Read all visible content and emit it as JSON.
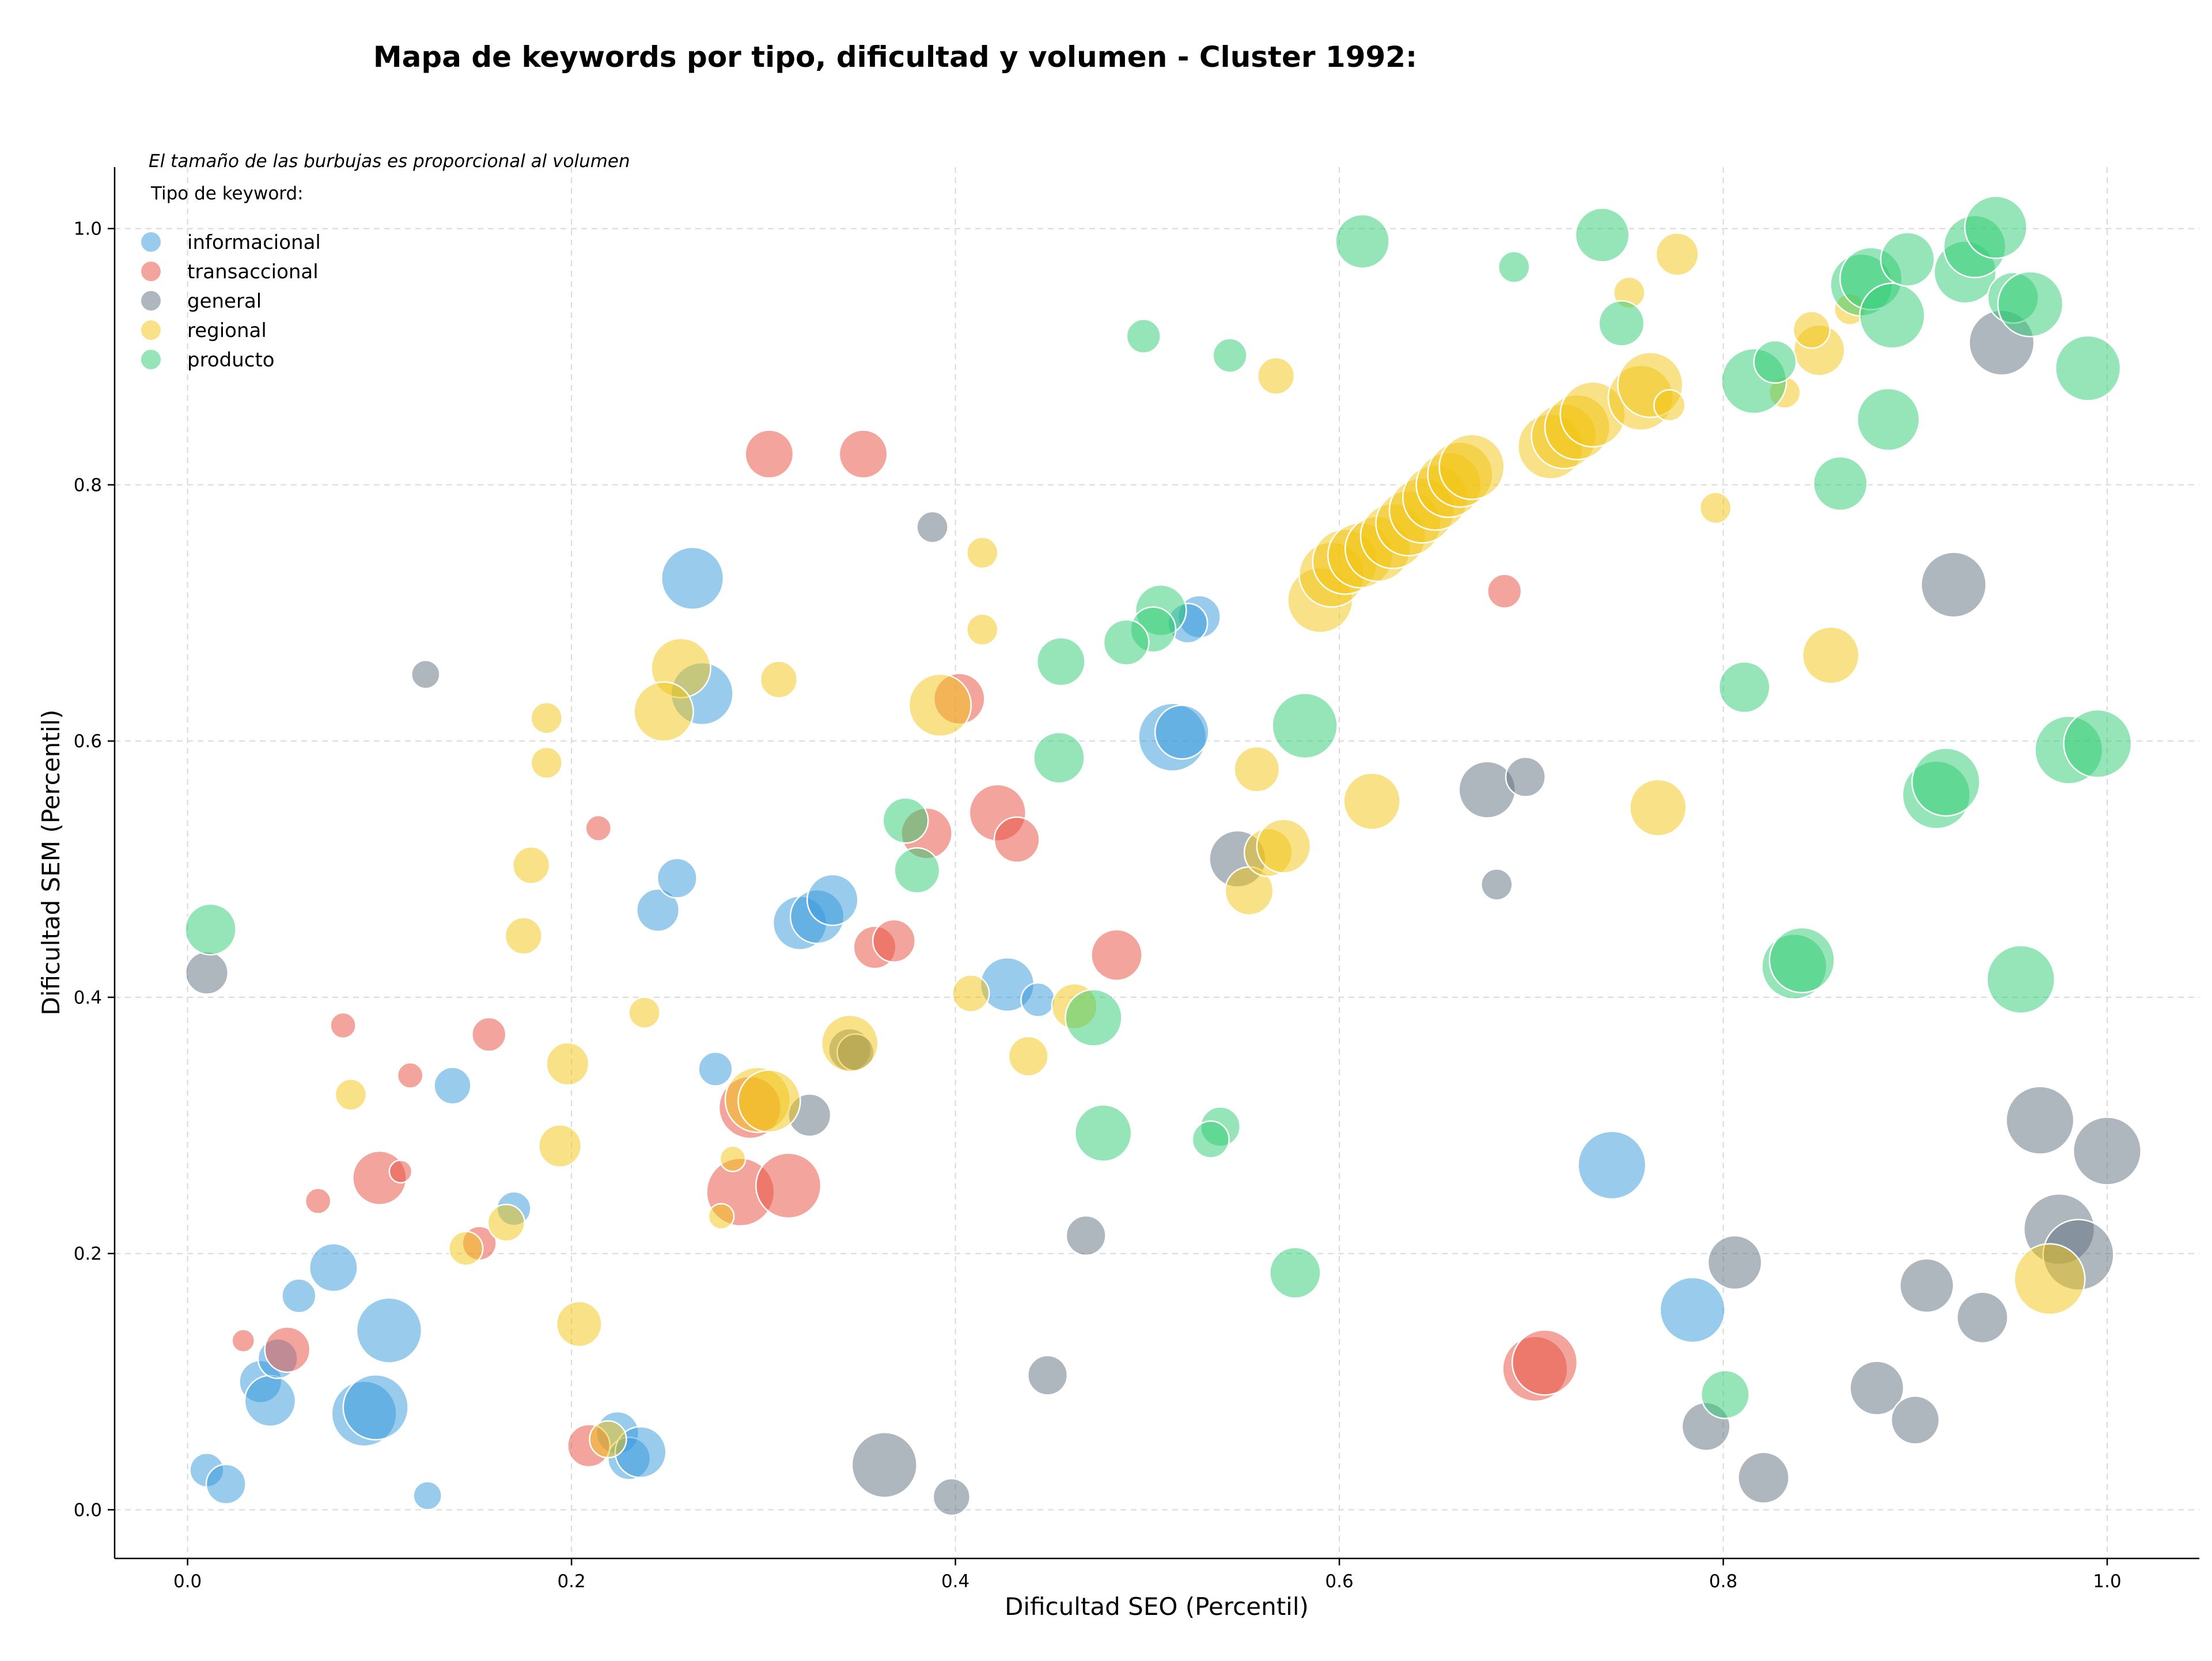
{
  "chart_data": {
    "type": "scatter",
    "title": "Mapa de keywords por tipo, dificultad y volumen - Cluster 1992:",
    "xlabel": "Dificultad SEO (Percentil)",
    "ylabel": "Dificultad SEM (Percentil)",
    "xlim": [
      -0.038,
      1.048
    ],
    "ylim": [
      -0.038,
      1.048
    ],
    "xticks": [
      "0.0",
      "0.2",
      "0.4",
      "0.6",
      "0.8",
      "1.0"
    ],
    "yticks": [
      "0.0",
      "0.2",
      "0.4",
      "0.6",
      "0.8",
      "1.0"
    ],
    "xtick_values": [
      0.0,
      0.2,
      0.4,
      0.6,
      0.8,
      1.0
    ],
    "ytick_values": [
      0.0,
      0.2,
      0.4,
      0.6,
      0.8,
      1.0
    ],
    "grid": true,
    "legend_position": "top-left",
    "legend_note": "El tamaño de las burbujas es proporcional al volumen",
    "legend_title": "Tipo de keyword:",
    "series": [
      {
        "name": "informacional",
        "color": "#3498db",
        "points": [
          [
            0.263,
            0.727,
            44
          ],
          [
            0.268,
            0.637,
            44
          ],
          [
            0.513,
            0.603,
            48
          ],
          [
            0.518,
            0.607,
            38
          ],
          [
            0.527,
            0.697,
            30
          ],
          [
            0.521,
            0.692,
            28
          ],
          [
            0.427,
            0.41,
            38
          ],
          [
            0.443,
            0.398,
            24
          ],
          [
            0.319,
            0.458,
            38
          ],
          [
            0.328,
            0.463,
            38
          ],
          [
            0.336,
            0.476,
            36
          ],
          [
            0.245,
            0.468,
            30
          ],
          [
            0.255,
            0.493,
            28
          ],
          [
            0.275,
            0.344,
            24
          ],
          [
            0.138,
            0.331,
            26
          ],
          [
            0.17,
            0.235,
            24
          ],
          [
            0.076,
            0.189,
            34
          ],
          [
            0.058,
            0.167,
            24
          ],
          [
            0.105,
            0.14,
            46
          ],
          [
            0.038,
            0.1,
            30
          ],
          [
            0.043,
            0.085,
            36
          ],
          [
            0.047,
            0.118,
            28
          ],
          [
            0.092,
            0.075,
            46
          ],
          [
            0.098,
            0.08,
            46
          ],
          [
            0.01,
            0.031,
            24
          ],
          [
            0.02,
            0.02,
            28
          ],
          [
            0.125,
            0.011,
            20
          ],
          [
            0.224,
            0.06,
            30
          ],
          [
            0.23,
            0.04,
            30
          ],
          [
            0.236,
            0.045,
            36
          ],
          [
            0.742,
            0.269,
            48
          ],
          [
            0.784,
            0.156,
            46
          ]
        ]
      },
      {
        "name": "transaccional",
        "color": "#e74c3c",
        "points": [
          [
            0.303,
            0.824,
            34
          ],
          [
            0.352,
            0.824,
            34
          ],
          [
            0.686,
            0.717,
            24
          ],
          [
            0.402,
            0.633,
            36
          ],
          [
            0.422,
            0.544,
            40
          ],
          [
            0.432,
            0.523,
            32
          ],
          [
            0.385,
            0.528,
            36
          ],
          [
            0.358,
            0.439,
            30
          ],
          [
            0.368,
            0.444,
            30
          ],
          [
            0.484,
            0.433,
            36
          ],
          [
            0.214,
            0.532,
            18
          ],
          [
            0.081,
            0.378,
            18
          ],
          [
            0.157,
            0.371,
            24
          ],
          [
            0.116,
            0.339,
            18
          ],
          [
            0.1,
            0.259,
            38
          ],
          [
            0.111,
            0.264,
            16
          ],
          [
            0.068,
            0.241,
            18
          ],
          [
            0.152,
            0.208,
            24
          ],
          [
            0.293,
            0.314,
            44
          ],
          [
            0.288,
            0.248,
            48
          ],
          [
            0.313,
            0.253,
            46
          ],
          [
            0.029,
            0.132,
            16
          ],
          [
            0.052,
            0.125,
            32
          ],
          [
            0.209,
            0.05,
            30
          ],
          [
            0.702,
            0.11,
            46
          ],
          [
            0.707,
            0.115,
            46
          ]
        ]
      },
      {
        "name": "general",
        "color": "#5d6d7e",
        "points": [
          [
            0.388,
            0.767,
            22
          ],
          [
            0.124,
            0.652,
            20
          ],
          [
            0.01,
            0.419,
            30
          ],
          [
            0.345,
            0.359,
            30
          ],
          [
            0.348,
            0.357,
            26
          ],
          [
            0.324,
            0.308,
            30
          ],
          [
            0.547,
            0.508,
            40
          ],
          [
            0.677,
            0.562,
            40
          ],
          [
            0.697,
            0.572,
            28
          ],
          [
            0.682,
            0.488,
            22
          ],
          [
            0.468,
            0.214,
            28
          ],
          [
            0.448,
            0.105,
            28
          ],
          [
            0.363,
            0.035,
            46
          ],
          [
            0.398,
            0.01,
            26
          ],
          [
            0.92,
            0.722,
            46
          ],
          [
            0.945,
            0.911,
            46
          ],
          [
            0.806,
            0.193,
            38
          ],
          [
            0.791,
            0.065,
            34
          ],
          [
            0.821,
            0.025,
            36
          ],
          [
            0.88,
            0.095,
            38
          ],
          [
            0.9,
            0.07,
            34
          ],
          [
            0.906,
            0.175,
            38
          ],
          [
            0.935,
            0.15,
            36
          ],
          [
            0.965,
            0.304,
            48
          ],
          [
            0.975,
            0.219,
            50
          ],
          [
            0.985,
            0.199,
            50
          ],
          [
            1.0,
            0.28,
            48
          ]
        ]
      },
      {
        "name": "regional",
        "color": "#f1c40f",
        "points": [
          [
            0.414,
            0.747,
            22
          ],
          [
            0.414,
            0.687,
            22
          ],
          [
            0.257,
            0.657,
            42
          ],
          [
            0.248,
            0.623,
            42
          ],
          [
            0.308,
            0.648,
            26
          ],
          [
            0.187,
            0.618,
            22
          ],
          [
            0.187,
            0.583,
            22
          ],
          [
            0.179,
            0.503,
            26
          ],
          [
            0.175,
            0.448,
            26
          ],
          [
            0.238,
            0.388,
            22
          ],
          [
            0.198,
            0.348,
            30
          ],
          [
            0.085,
            0.324,
            22
          ],
          [
            0.194,
            0.284,
            30
          ],
          [
            0.166,
            0.224,
            26
          ],
          [
            0.145,
            0.204,
            24
          ],
          [
            0.204,
            0.145,
            32
          ],
          [
            0.284,
            0.274,
            18
          ],
          [
            0.278,
            0.229,
            18
          ],
          [
            0.297,
            0.32,
            46
          ],
          [
            0.303,
            0.319,
            44
          ],
          [
            0.345,
            0.364,
            40
          ],
          [
            0.392,
            0.628,
            44
          ],
          [
            0.408,
            0.403,
            26
          ],
          [
            0.438,
            0.354,
            28
          ],
          [
            0.462,
            0.393,
            32
          ],
          [
            0.557,
            0.578,
            32
          ],
          [
            0.553,
            0.483,
            34
          ],
          [
            0.563,
            0.513,
            34
          ],
          [
            0.571,
            0.518,
            38
          ],
          [
            0.617,
            0.553,
            40
          ],
          [
            0.567,
            0.885,
            26
          ],
          [
            0.219,
            0.055,
            26
          ],
          [
            0.59,
            0.71,
            46
          ],
          [
            0.596,
            0.73,
            46
          ],
          [
            0.603,
            0.74,
            46
          ],
          [
            0.611,
            0.745,
            46
          ],
          [
            0.62,
            0.75,
            46
          ],
          [
            0.628,
            0.76,
            46
          ],
          [
            0.636,
            0.77,
            46
          ],
          [
            0.643,
            0.78,
            46
          ],
          [
            0.65,
            0.79,
            46
          ],
          [
            0.657,
            0.8,
            46
          ],
          [
            0.663,
            0.808,
            46
          ],
          [
            0.669,
            0.814,
            46
          ],
          [
            0.71,
            0.83,
            46
          ],
          [
            0.717,
            0.838,
            46
          ],
          [
            0.724,
            0.845,
            46
          ],
          [
            0.732,
            0.855,
            46
          ],
          [
            0.757,
            0.868,
            46
          ],
          [
            0.762,
            0.878,
            46
          ],
          [
            0.772,
            0.862,
            22
          ],
          [
            0.796,
            0.782,
            22
          ],
          [
            0.751,
            0.95,
            22
          ],
          [
            0.776,
            0.98,
            30
          ],
          [
            0.766,
            0.548,
            40
          ],
          [
            0.856,
            0.667,
            40
          ],
          [
            0.85,
            0.905,
            36
          ],
          [
            0.846,
            0.921,
            26
          ],
          [
            0.832,
            0.872,
            22
          ],
          [
            0.866,
            0.937,
            22
          ],
          [
            0.97,
            0.18,
            50
          ]
        ]
      },
      {
        "name": "producto",
        "color": "#2ecc71",
        "points": [
          [
            0.612,
            0.99,
            38
          ],
          [
            0.737,
            0.995,
            38
          ],
          [
            0.691,
            0.97,
            22
          ],
          [
            0.747,
            0.926,
            32
          ],
          [
            0.498,
            0.916,
            24
          ],
          [
            0.543,
            0.901,
            24
          ],
          [
            0.507,
            0.702,
            36
          ],
          [
            0.503,
            0.687,
            32
          ],
          [
            0.489,
            0.677,
            32
          ],
          [
            0.455,
            0.662,
            34
          ],
          [
            0.454,
            0.587,
            36
          ],
          [
            0.582,
            0.612,
            46
          ],
          [
            0.374,
            0.538,
            32
          ],
          [
            0.38,
            0.499,
            32
          ],
          [
            0.472,
            0.384,
            40
          ],
          [
            0.477,
            0.294,
            40
          ],
          [
            0.538,
            0.299,
            28
          ],
          [
            0.533,
            0.289,
            26
          ],
          [
            0.577,
            0.185,
            36
          ],
          [
            0.801,
            0.09,
            34
          ],
          [
            0.012,
            0.453,
            36
          ],
          [
            0.811,
            0.642,
            36
          ],
          [
            0.816,
            0.881,
            46
          ],
          [
            0.827,
            0.896,
            30
          ],
          [
            0.861,
            0.801,
            38
          ],
          [
            0.886,
            0.851,
            44
          ],
          [
            0.872,
            0.956,
            44
          ],
          [
            0.877,
            0.961,
            44
          ],
          [
            0.888,
            0.932,
            46
          ],
          [
            0.896,
            0.976,
            38
          ],
          [
            0.926,
            0.966,
            44
          ],
          [
            0.931,
            0.986,
            44
          ],
          [
            0.942,
            1.001,
            44
          ],
          [
            0.951,
            0.946,
            36
          ],
          [
            0.96,
            0.941,
            46
          ],
          [
            0.99,
            0.891,
            46
          ],
          [
            0.837,
            0.424,
            46
          ],
          [
            0.841,
            0.429,
            46
          ],
          [
            0.911,
            0.558,
            48
          ],
          [
            0.916,
            0.568,
            48
          ],
          [
            0.955,
            0.414,
            48
          ],
          [
            0.98,
            0.593,
            48
          ],
          [
            0.995,
            0.598,
            48
          ]
        ]
      }
    ]
  }
}
